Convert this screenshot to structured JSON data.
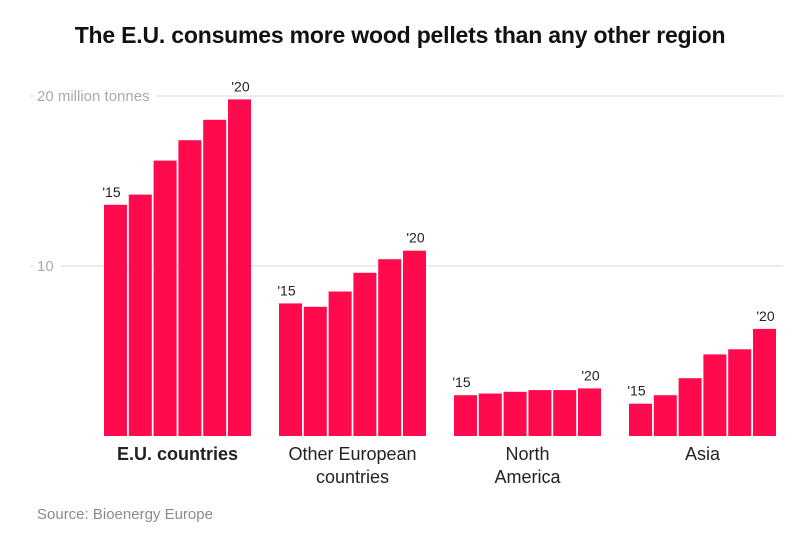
{
  "title": "The E.U. consumes more wood pellets than any other region",
  "source": "Source: Bioenergy Europe",
  "colors": {
    "bar": "#ff0a4d",
    "grid": "#d9d9d9",
    "axis_text": "#aaaaaa",
    "label": "#222222"
  },
  "chart_data": {
    "type": "bar",
    "title": "The E.U. consumes more wood pellets than any other region",
    "ylabel": "",
    "unit": "million tonnes",
    "ylim": [
      0,
      20
    ],
    "y_ticks": [
      {
        "value": 20,
        "label": "20 million tonnes"
      },
      {
        "value": 10,
        "label": "10"
      }
    ],
    "grid": true,
    "year_start_label": "'15",
    "year_end_label": "'20",
    "groups": [
      {
        "name": "E.U. countries",
        "highlight": true,
        "values": [
          13.6,
          14.2,
          16.2,
          17.4,
          18.6,
          19.8
        ]
      },
      {
        "name": "Other European countries",
        "highlight": false,
        "values": [
          7.8,
          7.6,
          8.5,
          9.6,
          10.4,
          10.9
        ]
      },
      {
        "name": "North America",
        "highlight": false,
        "values": [
          2.4,
          2.5,
          2.6,
          2.7,
          2.7,
          2.8
        ]
      },
      {
        "name": "Asia",
        "highlight": false,
        "values": [
          1.9,
          2.4,
          3.4,
          4.8,
          5.1,
          6.3
        ]
      }
    ]
  }
}
